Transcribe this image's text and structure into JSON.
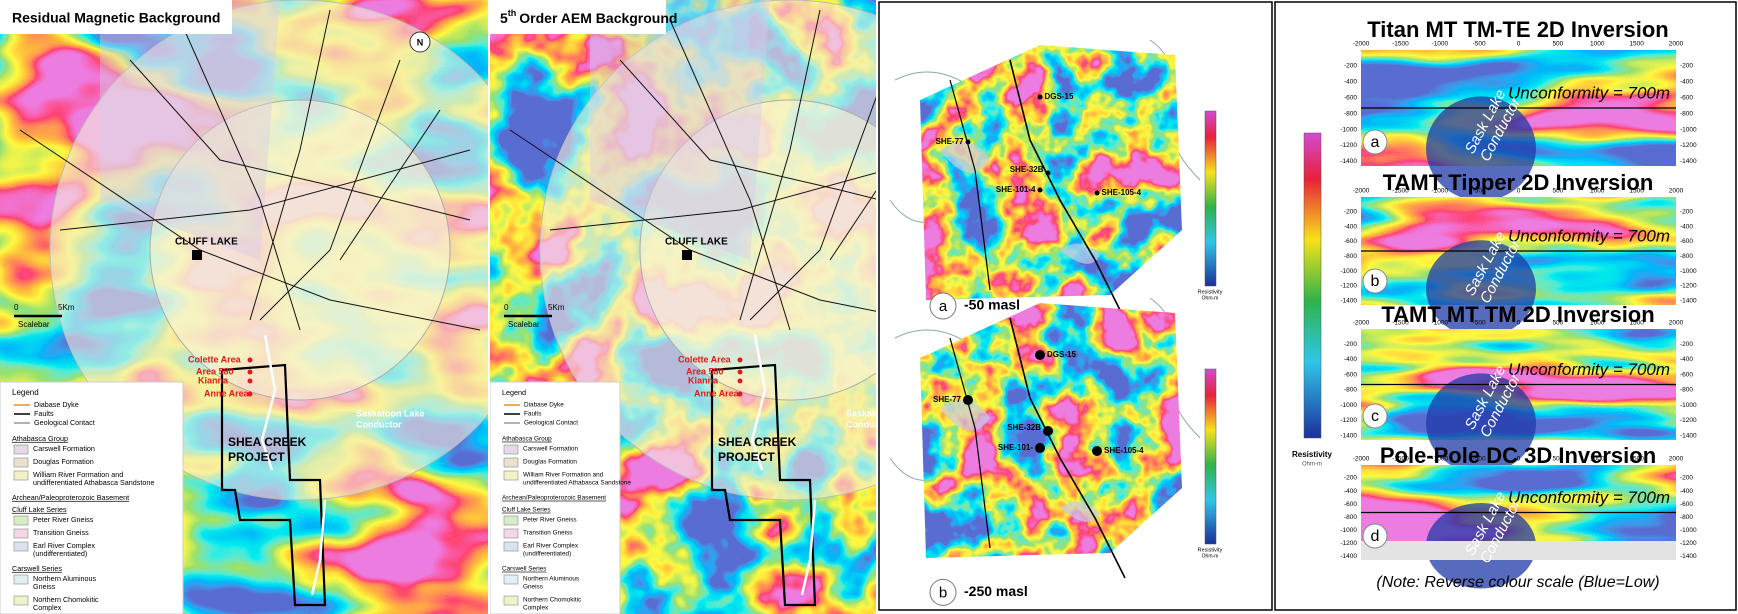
{
  "magnetic_map": {
    "title": "Residual Magnetic Background",
    "town": "CLUFF LAKE",
    "scale": {
      "zero": "0",
      "distance": "5Km",
      "caption": "Scalebar"
    },
    "areas": [
      "Colette Area",
      "Area 580",
      "Kianna",
      "Anne Area"
    ],
    "conductor": [
      "Saskatoon Lake",
      "Conductor"
    ],
    "project": [
      "SHEA CREEK",
      "PROJECT"
    ],
    "legend": {
      "heading": "Legend",
      "lines": [
        {
          "label": "Diabase Dyke",
          "color": "#f08a24"
        },
        {
          "label": "Faults",
          "color": "#000000"
        },
        {
          "label": "Geological Contact",
          "color": "#999999"
        }
      ],
      "groups": [
        {
          "heading": "Athabasca Group",
          "items": [
            {
              "label": [
                "Carswell Formation"
              ],
              "color": "#e7d8e8"
            },
            {
              "label": [
                "Douglas Formation"
              ],
              "color": "#e9e2cf"
            },
            {
              "label": [
                "William River Formation and",
                "undifferentiated Athabasca Sandstone"
              ],
              "color": "#f4f1c8"
            }
          ]
        },
        {
          "heading": "Archean/Paleoproterozoic Basement",
          "items": []
        },
        {
          "heading": "Cluff Lake Series",
          "items": [
            {
              "label": [
                "Peter River Gneiss"
              ],
              "color": "#d8ecc6"
            },
            {
              "label": [
                "Transition Gneiss"
              ],
              "color": "#f2d8e8"
            },
            {
              "label": [
                "Earl River Complex",
                "(undifferentiated)"
              ],
              "color": "#dbe3ef"
            }
          ]
        },
        {
          "heading": "Carswell Series",
          "items": [
            {
              "label": [
                "Northern Aluminous",
                "Gneiss"
              ],
              "color": "#e2f0f4"
            },
            {
              "label": [
                "Northern Chomokitic",
                "Complex"
              ],
              "color": "#eef3c9"
            }
          ]
        }
      ]
    }
  },
  "aem_map": {
    "title": {
      "number": "5",
      "suffix": "th",
      "rest": "Order AEM Background"
    },
    "town": "CLUFF LAKE",
    "scale": {
      "zero": "0",
      "distance": "5Km",
      "caption": "Scalebar"
    },
    "areas": [
      "Colette Area",
      "Area 580",
      "Kianna",
      "Anne Area"
    ],
    "conductor": [
      "Saskatoon Lake",
      "Conductor"
    ],
    "project": [
      "SHEA CREEK",
      "PROJECT"
    ],
    "legend": {
      "heading": "Legend",
      "lines": [
        {
          "label": "Diabase Dyke",
          "color": "#f08a24"
        },
        {
          "label": "Faults",
          "color": "#000000"
        },
        {
          "label": "Geological Contact",
          "color": "#999999"
        }
      ],
      "groups": [
        {
          "heading": "Athabasca Group",
          "items": [
            {
              "label": [
                "Carswell Formation"
              ],
              "color": "#e7d8e8"
            },
            {
              "label": [
                "Douglas Formation"
              ],
              "color": "#e9e2cf"
            },
            {
              "label": [
                "William River Formation and",
                "undifferentiated Athabasca Sandstone"
              ],
              "color": "#f4f1c8"
            }
          ]
        },
        {
          "heading": "Archean/Paleoproterozoic Basement",
          "items": []
        },
        {
          "heading": "Cluff Lake Series",
          "items": [
            {
              "label": [
                "Peter River Gneiss"
              ],
              "color": "#d8ecc6"
            },
            {
              "label": [
                "Transition Gneiss"
              ],
              "color": "#f2d8e8"
            },
            {
              "label": [
                "Earl River Complex",
                "(undifferentiated)"
              ],
              "color": "#dbe3ef"
            }
          ]
        },
        {
          "heading": "Carswell Series",
          "items": [
            {
              "label": [
                "Northern Aluminous",
                "Gneiss"
              ],
              "color": "#e2f0f4"
            },
            {
              "label": [
                "Northern Chomokitic",
                "Complex"
              ],
              "color": "#eef3c9"
            }
          ]
        }
      ]
    }
  },
  "depth_slices": [
    {
      "letter": "a",
      "label": "-50 masl",
      "holes": [
        "DGS-15",
        "SHE-77",
        "SHE-32B",
        "SHE-101-4",
        "SHE-105-4"
      ],
      "colorbar": {
        "title": "Resistivity",
        "unit": "Ohm-m"
      }
    },
    {
      "letter": "b",
      "label": "-250 masl",
      "holes": [
        "DGS-15",
        "SHE-77",
        "SHE-32B",
        "SHE-101-",
        "SHE-105-4"
      ],
      "colorbar": {
        "title": "Resistivity",
        "unit": "Ohm-m"
      }
    }
  ],
  "sections": {
    "colorbar": {
      "title": "Resistivity",
      "unit": "Ohm-m"
    },
    "xticks": [
      "-2000",
      "-1500",
      "-1000",
      "-500",
      "0",
      "500",
      "1000",
      "1500",
      "2000"
    ],
    "yticks": [
      "-200",
      "-400",
      "-600",
      "-800",
      "-1000",
      "-1200",
      "-1400"
    ],
    "items": [
      {
        "title": "Titan MT TM-TE 2D Inversion",
        "letter": "a",
        "unconformity": "Unconformity = 700m",
        "conductor": [
          "Sask Lake",
          "Conductor"
        ]
      },
      {
        "title": "TAMT Tipper 2D Inversion",
        "letter": "b",
        "unconformity": "Unconformity = 700m",
        "conductor": [
          "Sask Lake",
          "Conductor"
        ]
      },
      {
        "title": "TAMT MT TM 2D Inversion",
        "letter": "c",
        "unconformity": "Unconformity = 700m",
        "conductor": [
          "Sask Lake",
          "Conductor"
        ]
      },
      {
        "title": "Pole-Pole DC 3D Inversion",
        "letter": "d",
        "unconformity": "Unconformity = 700m",
        "conductor": [
          "Sask Lake",
          "Conductor"
        ]
      }
    ],
    "note": "(Note: Reverse colour scale (Blue=Low)"
  }
}
